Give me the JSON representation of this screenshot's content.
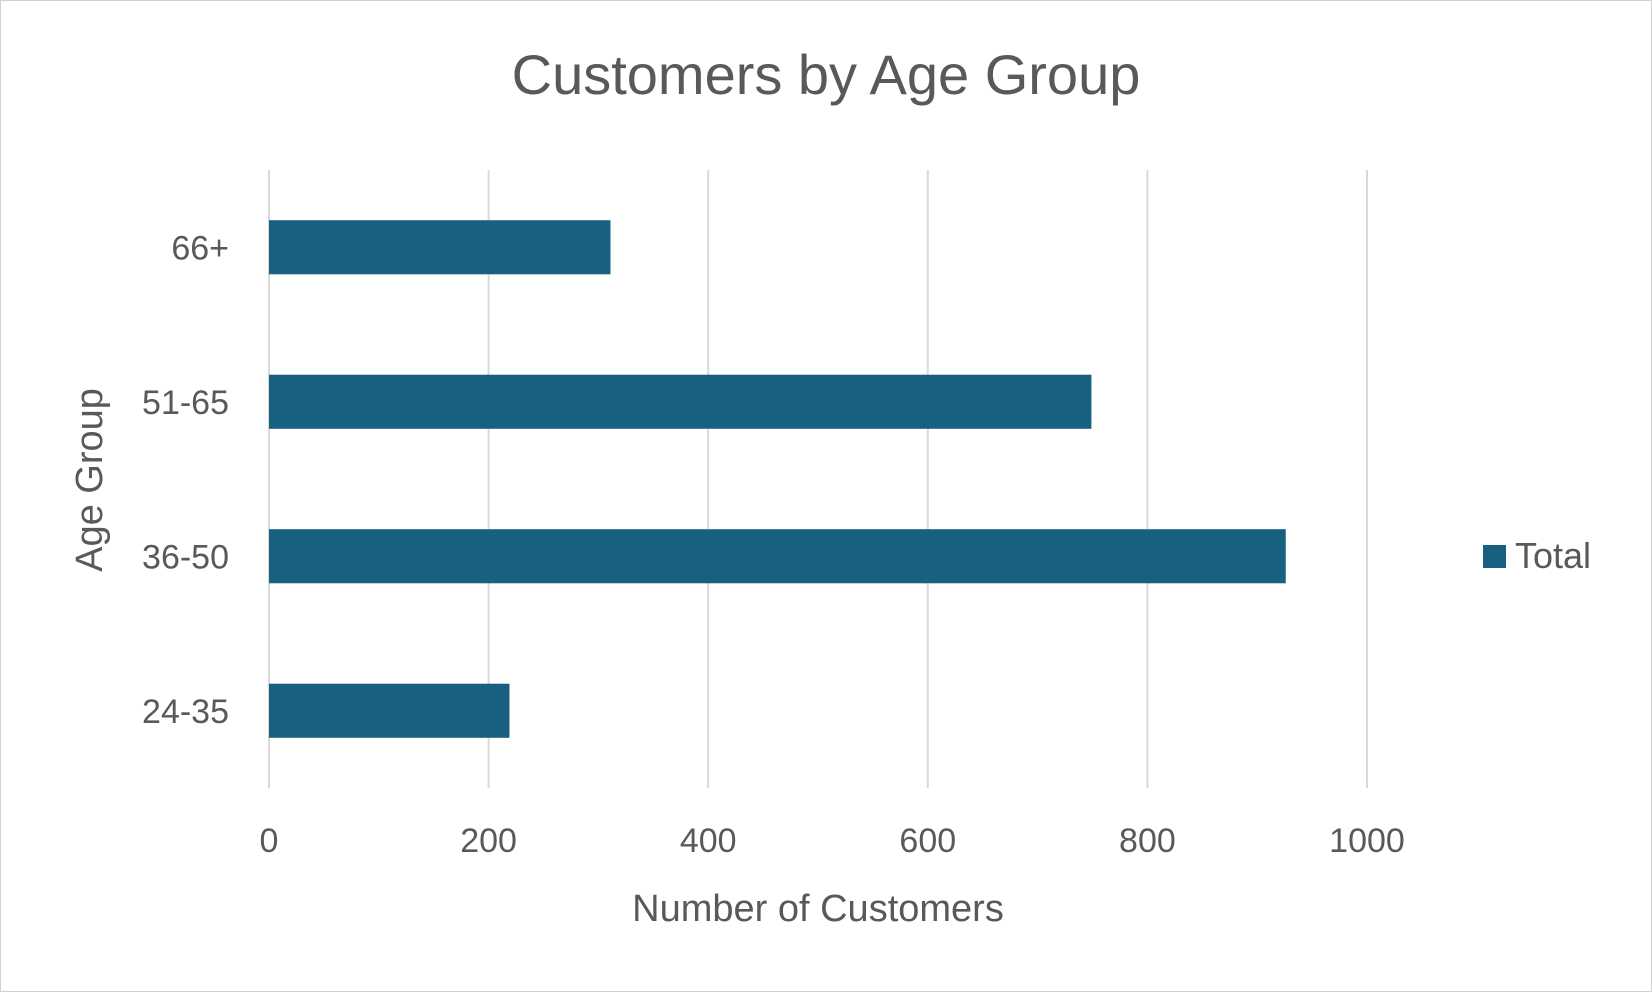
{
  "chart_data": {
    "type": "bar",
    "orientation": "horizontal",
    "title": "Customers by Age Group",
    "xlabel": "Number of Customers",
    "ylabel": "Age Group",
    "categories": [
      "24-35",
      "36-50",
      "51-65",
      "66+"
    ],
    "series": [
      {
        "name": "Total",
        "values": [
          219,
          926,
          749,
          311
        ],
        "color": "#17607f"
      }
    ],
    "xlim": [
      0,
      1000
    ],
    "xticks": [
      0,
      200,
      400,
      600,
      800,
      1000
    ],
    "grid": true,
    "legend_position": "right",
    "colors": {
      "bar": "#17607f",
      "grid": "#d9d9d9",
      "text": "#595959"
    }
  }
}
